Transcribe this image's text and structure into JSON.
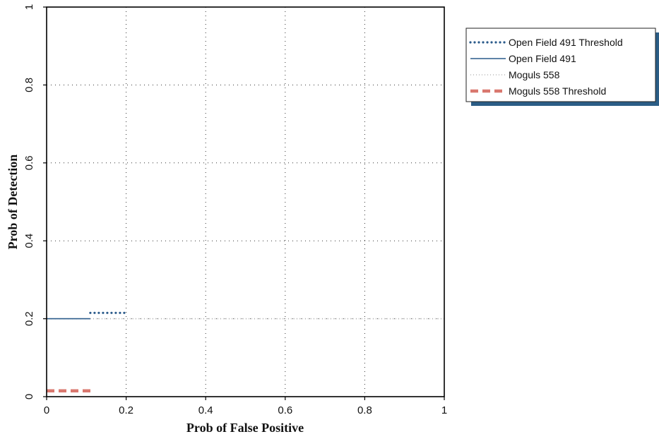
{
  "chart_data": {
    "type": "line",
    "title": "",
    "xlabel": "Prob of False Positive",
    "ylabel": "Prob of Detection",
    "xlim": [
      0,
      1
    ],
    "ylim": [
      0,
      1
    ],
    "xticks": [
      "0",
      "0.2",
      "0.4",
      "0.6",
      "0.8",
      "1"
    ],
    "yticks": [
      "0",
      "0.2",
      "0.4",
      "0.6",
      "0.8",
      "1"
    ],
    "grid": true,
    "legend_position": "outside-top-right",
    "series": [
      {
        "name": "Open Field 491 Threshold",
        "style": "dotted",
        "color": "#2a5a8a",
        "x": [
          0.11,
          0.2
        ],
        "y": [
          0.215,
          0.215
        ]
      },
      {
        "name": "Open Field 491",
        "style": "solid",
        "color": "#2a5a8a",
        "x": [
          0.0,
          0.11
        ],
        "y": [
          0.2,
          0.2
        ]
      },
      {
        "name": "Moguls 558",
        "style": "light-dotted",
        "color": "#b8b8b8",
        "x": [
          0.11,
          1.0
        ],
        "y": [
          0.2,
          0.2
        ]
      },
      {
        "name": "Moguls 558 Threshold",
        "style": "dashed",
        "color": "#d9776e",
        "x": [
          0.0,
          0.12
        ],
        "y": [
          0.015,
          0.015
        ]
      }
    ]
  }
}
